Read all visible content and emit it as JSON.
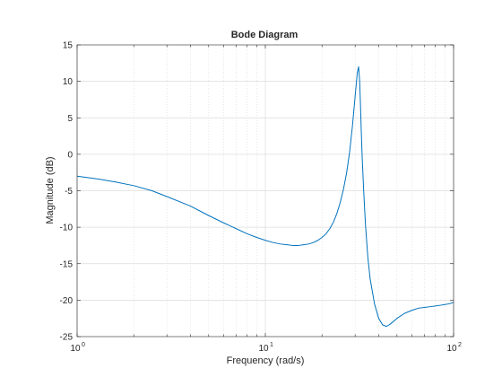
{
  "chart_data": {
    "type": "line",
    "title": "Bode Diagram",
    "xlabel": "Frequency  (rad/s)",
    "ylabel": "Magnitude (dB)",
    "xscale": "log",
    "xlim": [
      1,
      100
    ],
    "ylim": [
      -25,
      15
    ],
    "grid": true,
    "yticks": [
      "15",
      "10",
      "5",
      "0",
      "-5",
      "-10",
      "-15",
      "-20",
      "-25"
    ],
    "xticks": [
      {
        "base": "10",
        "exp": "0"
      },
      {
        "base": "10",
        "exp": "1"
      },
      {
        "base": "10",
        "exp": "2"
      }
    ],
    "line_color": "#0072bd",
    "series": [
      {
        "x": [
          1,
          1.3,
          1.6,
          2,
          2.5,
          3,
          4,
          5,
          6,
          7,
          8,
          9,
          10,
          11,
          12,
          13,
          14,
          15,
          16,
          17,
          18,
          19,
          20,
          21,
          22,
          23,
          24,
          25,
          26,
          27,
          28,
          29,
          30,
          30.8,
          31.3,
          31.7,
          32,
          32.3,
          32.7,
          33.3,
          34,
          35,
          36,
          38,
          40,
          42,
          44,
          46,
          48,
          50,
          55,
          60,
          65,
          70,
          75,
          80,
          85,
          90,
          95,
          100
        ],
        "y": [
          -3.0,
          -3.4,
          -3.8,
          -4.3,
          -5.0,
          -5.8,
          -7.1,
          -8.4,
          -9.4,
          -10.2,
          -10.9,
          -11.4,
          -11.8,
          -12.1,
          -12.3,
          -12.4,
          -12.5,
          -12.5,
          -12.4,
          -12.3,
          -12.1,
          -11.8,
          -11.4,
          -10.9,
          -10.2,
          -9.3,
          -8.1,
          -6.6,
          -4.8,
          -2.6,
          0.2,
          3.8,
          8.0,
          11.2,
          12.0,
          10.0,
          7.0,
          3.5,
          -0.5,
          -5.0,
          -9.5,
          -14.0,
          -17.0,
          -20.5,
          -22.5,
          -23.4,
          -23.6,
          -23.3,
          -22.9,
          -22.5,
          -21.8,
          -21.4,
          -21.1,
          -21.0,
          -20.9,
          -20.8,
          -20.7,
          -20.6,
          -20.5,
          -20.3
        ]
      }
    ]
  }
}
